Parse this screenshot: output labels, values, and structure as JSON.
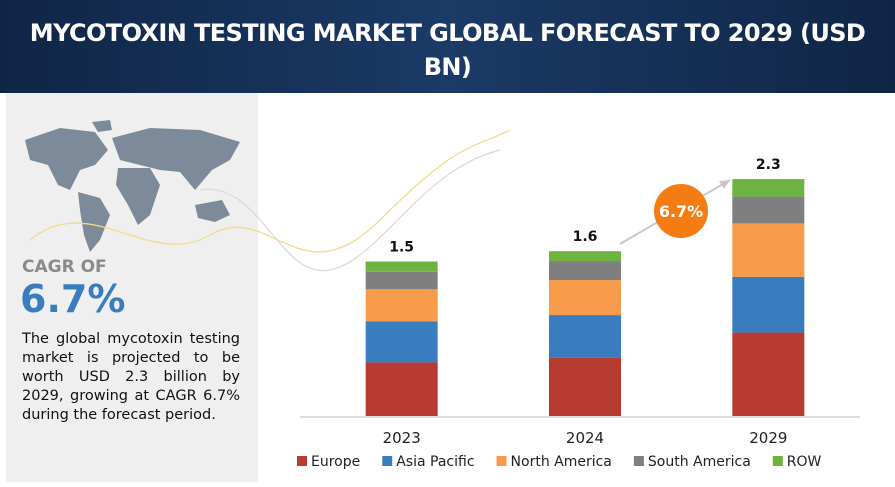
{
  "header": {
    "title": "MYCOTOXIN TESTING MARKET GLOBAL FORECAST TO 2029 (USD BN)"
  },
  "summary": {
    "cagr_label": "CAGR OF",
    "cagr_value": "6.7%",
    "description": "The global mycotoxin testing market is projected to be worth USD  2.3 billion by 2029, growing at CAGR 6.7% during the forecast period."
  },
  "chart_data": {
    "type": "bar",
    "stacked": true,
    "categories": [
      "2023",
      "2024",
      "2029"
    ],
    "series": [
      {
        "name": "Europe",
        "color": "#b83b32",
        "values": [
          0.52,
          0.57,
          0.81
        ]
      },
      {
        "name": "Asia Pacific",
        "color": "#3a7cc0",
        "values": [
          0.4,
          0.41,
          0.54
        ]
      },
      {
        "name": "North America",
        "color": "#f89b4a",
        "values": [
          0.31,
          0.34,
          0.52
        ]
      },
      {
        "name": "South America",
        "color": "#7f7f7f",
        "values": [
          0.17,
          0.18,
          0.26
        ]
      },
      {
        "name": "ROW",
        "color": "#6db33f",
        "values": [
          0.1,
          0.1,
          0.17
        ]
      }
    ],
    "totals": [
      1.5,
      1.6,
      2.3
    ],
    "annotation": "6.7%",
    "legend_position": "bottom"
  }
}
